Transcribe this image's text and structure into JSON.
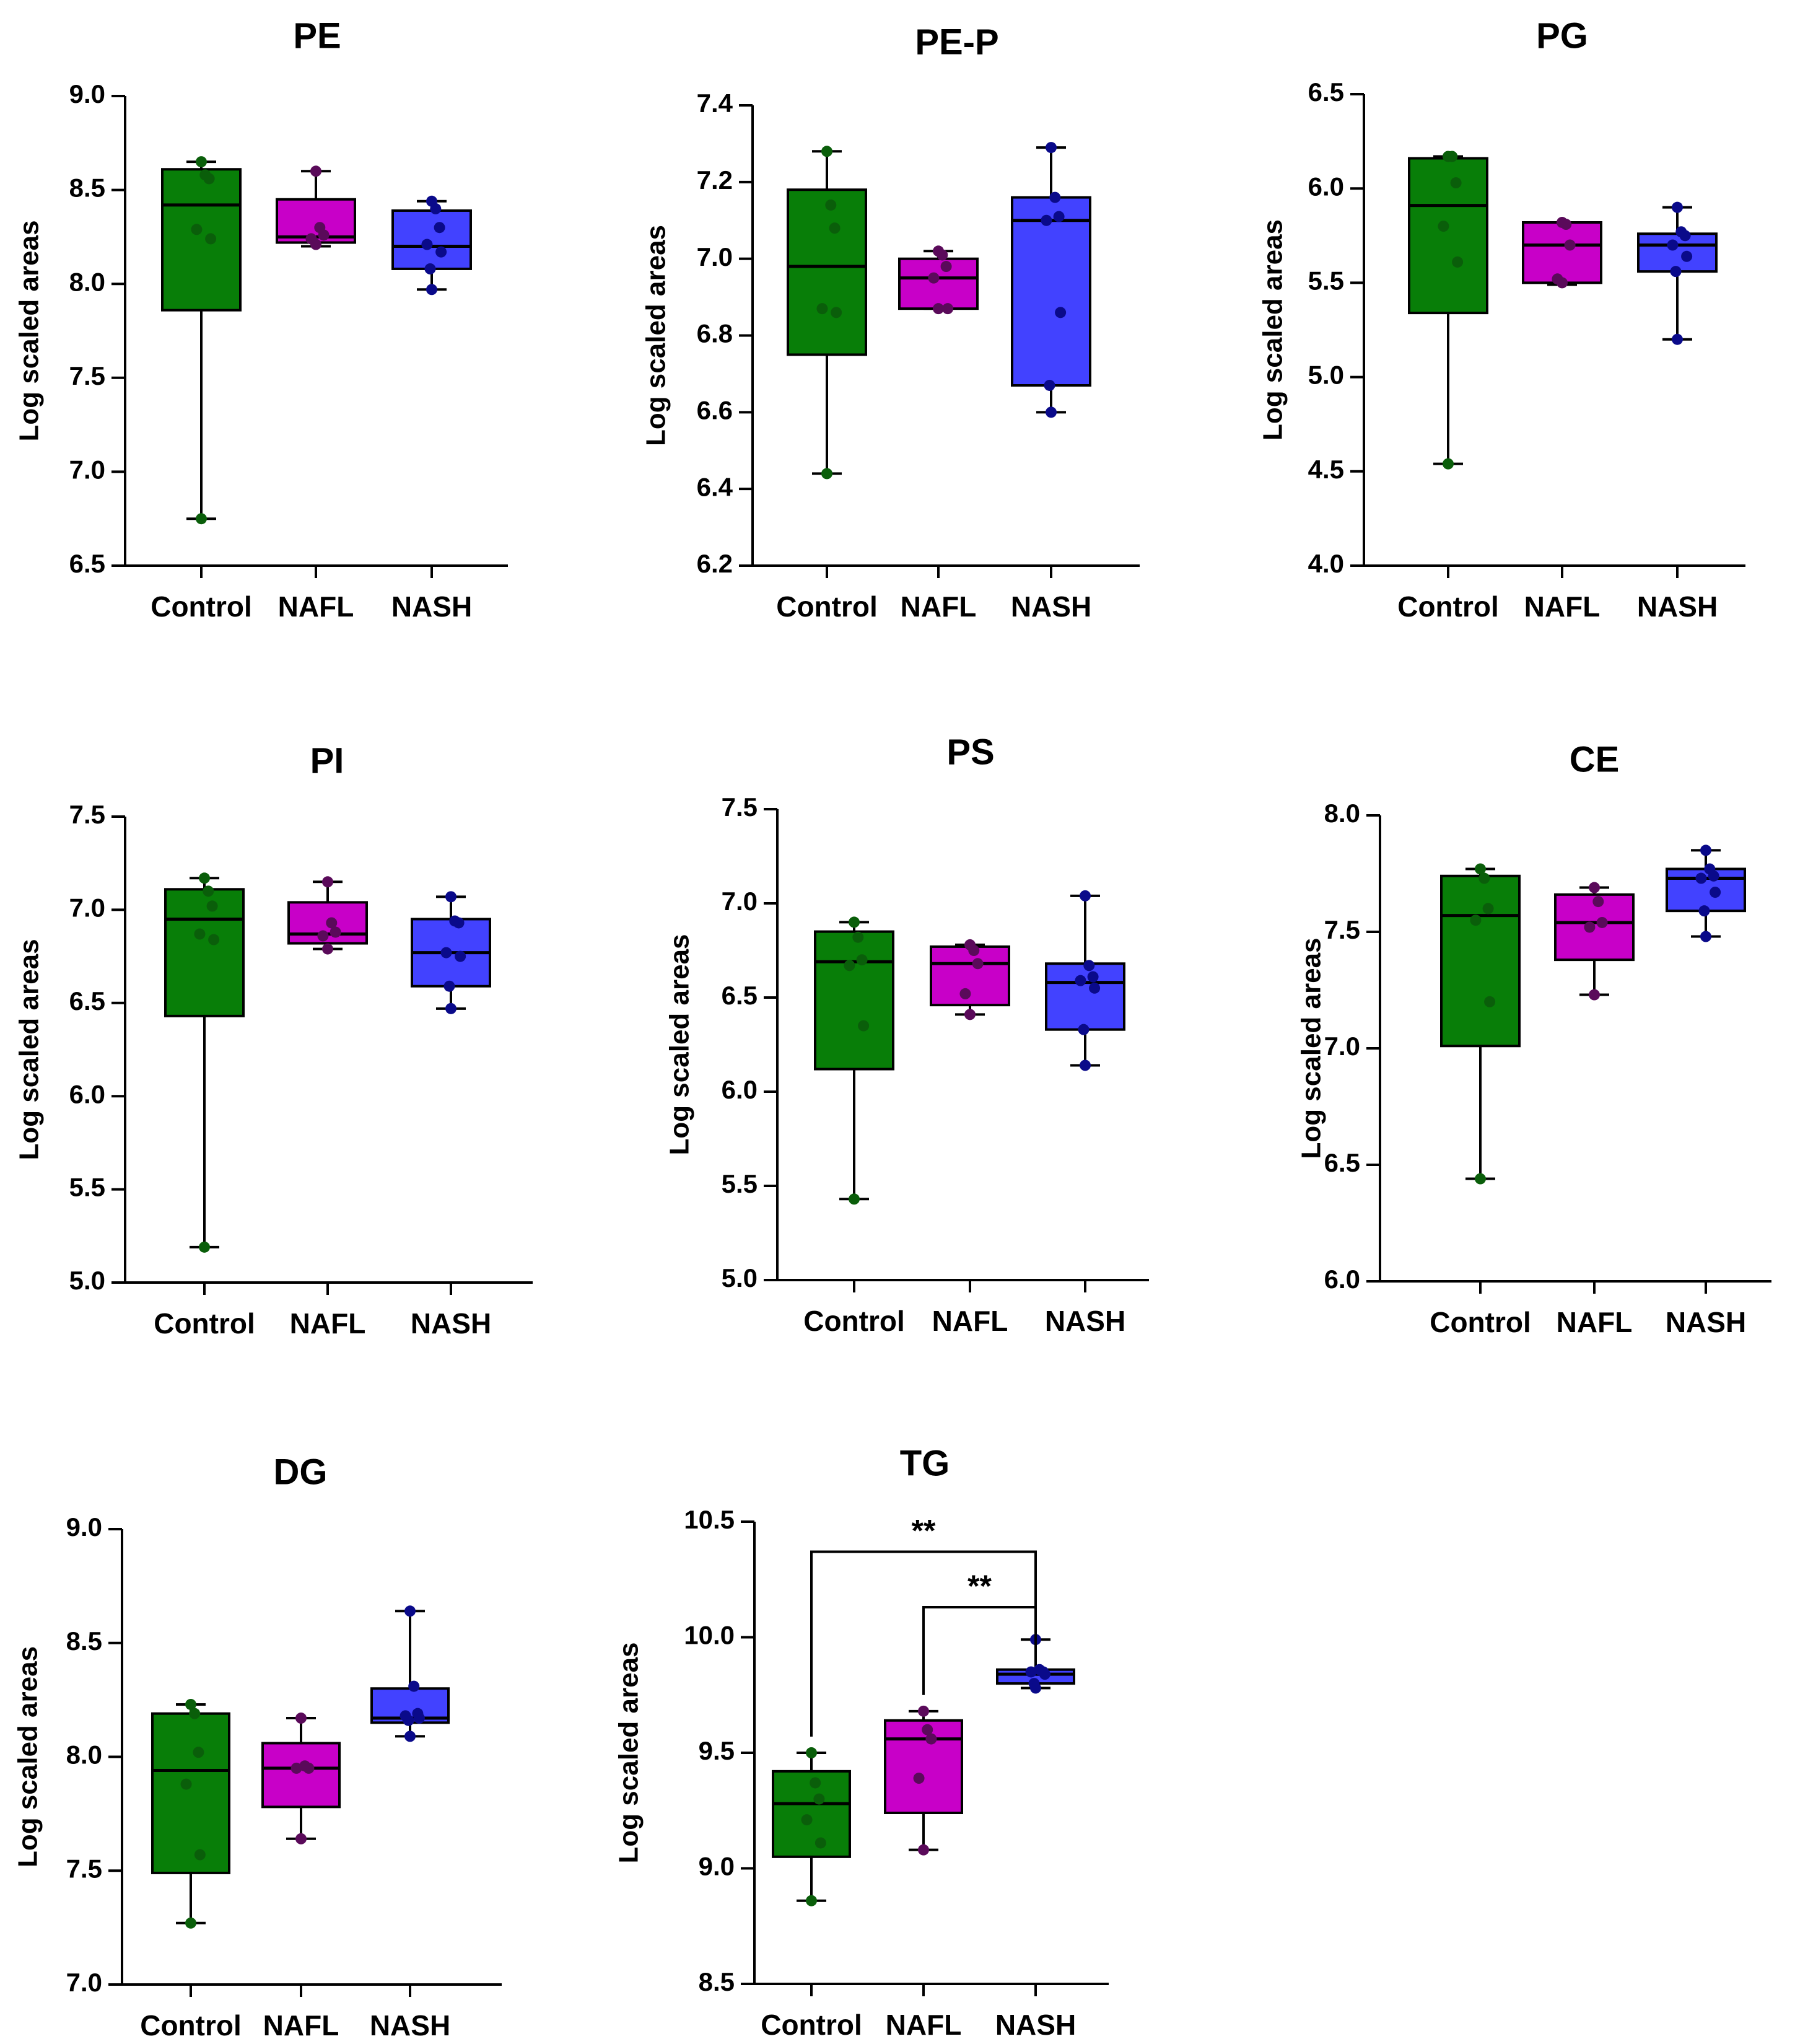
{
  "colors": {
    "Control": "#087e08",
    "NAFL": "#c800c8",
    "NASH": "#4242ff",
    "Control_point": "#0a5e0a",
    "NAFL_point": "#5a0a5a",
    "NASH_point": "#0a0a8a",
    "axis": "#000000"
  },
  "chart_data": [
    {
      "type": "box",
      "title": "PE",
      "xlabel": "",
      "ylabel": "Log scaled areas",
      "ylim": [
        6.5,
        9.0
      ],
      "yticks": [
        "6.5",
        "7.0",
        "7.5",
        "8.0",
        "8.5",
        "9.0"
      ],
      "categories": [
        "Control",
        "NAFL",
        "NASH"
      ],
      "series": [
        {
          "name": "Control",
          "min": 6.75,
          "q1": 7.86,
          "median": 8.42,
          "q3": 8.61,
          "max": 8.65,
          "points": [
            8.65,
            8.58,
            8.56,
            8.29,
            8.24,
            6.75
          ]
        },
        {
          "name": "NAFL",
          "min": 8.2,
          "q1": 8.22,
          "median": 8.25,
          "q3": 8.45,
          "max": 8.6,
          "points": [
            8.6,
            8.3,
            8.26,
            8.24,
            8.21
          ]
        },
        {
          "name": "NASH",
          "min": 7.97,
          "q1": 8.08,
          "median": 8.2,
          "q3": 8.39,
          "max": 8.44,
          "points": [
            8.44,
            8.4,
            8.3,
            8.21,
            8.17,
            8.08,
            7.97
          ]
        }
      ],
      "annotations": []
    },
    {
      "type": "box",
      "title": "PE-P",
      "xlabel": "",
      "ylabel": "Log scaled areas",
      "ylim": [
        6.2,
        7.4
      ],
      "yticks": [
        "6.2",
        "6.4",
        "6.6",
        "6.8",
        "7.0",
        "7.2",
        "7.4"
      ],
      "categories": [
        "Control",
        "NAFL",
        "NASH"
      ],
      "series": [
        {
          "name": "Control",
          "min": 6.44,
          "q1": 6.75,
          "median": 6.98,
          "q3": 7.18,
          "max": 7.28,
          "points": [
            7.28,
            7.14,
            7.08,
            6.87,
            6.86,
            6.44
          ]
        },
        {
          "name": "NAFL",
          "min": 6.87,
          "q1": 6.87,
          "median": 6.95,
          "q3": 7.0,
          "max": 7.02,
          "points": [
            7.02,
            7.01,
            6.98,
            6.95,
            6.87,
            6.87
          ]
        },
        {
          "name": "NASH",
          "min": 6.6,
          "q1": 6.67,
          "median": 7.1,
          "q3": 7.16,
          "max": 7.29,
          "points": [
            7.29,
            7.16,
            7.11,
            7.1,
            6.86,
            6.67,
            6.6
          ]
        }
      ],
      "annotations": []
    },
    {
      "type": "box",
      "title": "PG",
      "xlabel": "",
      "ylabel": "Log scaled areas",
      "ylim": [
        4.0,
        6.5
      ],
      "yticks": [
        "4.0",
        "4.5",
        "5.0",
        "5.5",
        "6.0",
        "6.5"
      ],
      "categories": [
        "Control",
        "NAFL",
        "NASH"
      ],
      "series": [
        {
          "name": "Control",
          "min": 4.54,
          "q1": 5.34,
          "median": 5.91,
          "q3": 6.16,
          "max": 6.17,
          "points": [
            6.17,
            6.17,
            6.03,
            5.8,
            5.61,
            4.54
          ]
        },
        {
          "name": "NAFL",
          "min": 5.49,
          "q1": 5.5,
          "median": 5.7,
          "q3": 5.82,
          "max": 5.82,
          "points": [
            5.82,
            5.81,
            5.7,
            5.52,
            5.5
          ]
        },
        {
          "name": "NASH",
          "min": 5.2,
          "q1": 5.56,
          "median": 5.7,
          "q3": 5.76,
          "max": 5.9,
          "points": [
            5.9,
            5.77,
            5.75,
            5.7,
            5.64,
            5.56,
            5.2
          ]
        }
      ],
      "annotations": []
    },
    {
      "type": "box",
      "title": "PI",
      "xlabel": "",
      "ylabel": "Log scaled areas",
      "ylim": [
        5.0,
        7.5
      ],
      "yticks": [
        "5.0",
        "5.5",
        "6.0",
        "6.5",
        "7.0",
        "7.5"
      ],
      "categories": [
        "Control",
        "NAFL",
        "NASH"
      ],
      "series": [
        {
          "name": "Control",
          "min": 5.19,
          "q1": 6.43,
          "median": 6.95,
          "q3": 7.11,
          "max": 7.17,
          "points": [
            7.17,
            7.1,
            7.02,
            6.87,
            6.84,
            5.19
          ]
        },
        {
          "name": "NAFL",
          "min": 6.79,
          "q1": 6.82,
          "median": 6.87,
          "q3": 7.04,
          "max": 7.15,
          "points": [
            7.15,
            6.93,
            6.88,
            6.86,
            6.79
          ]
        },
        {
          "name": "NASH",
          "min": 6.47,
          "q1": 6.59,
          "median": 6.77,
          "q3": 6.95,
          "max": 7.07,
          "points": [
            7.07,
            6.94,
            6.93,
            6.77,
            6.75,
            6.59,
            6.47
          ]
        }
      ],
      "annotations": []
    },
    {
      "type": "box",
      "title": "PS",
      "xlabel": "",
      "ylabel": "Log scaled areas",
      "ylim": [
        5.0,
        7.5
      ],
      "yticks": [
        "5.0",
        "5.5",
        "6.0",
        "6.5",
        "7.0",
        "7.5"
      ],
      "categories": [
        "Control",
        "NAFL",
        "NASH"
      ],
      "series": [
        {
          "name": "Control",
          "min": 5.43,
          "q1": 6.12,
          "median": 6.69,
          "q3": 6.85,
          "max": 6.9,
          "points": [
            6.9,
            6.82,
            6.7,
            6.67,
            6.35,
            5.43
          ]
        },
        {
          "name": "NAFL",
          "min": 6.41,
          "q1": 6.46,
          "median": 6.68,
          "q3": 6.77,
          "max": 6.78,
          "points": [
            6.78,
            6.75,
            6.68,
            6.52,
            6.41
          ]
        },
        {
          "name": "NASH",
          "min": 6.14,
          "q1": 6.33,
          "median": 6.58,
          "q3": 6.68,
          "max": 7.04,
          "points": [
            7.04,
            6.67,
            6.61,
            6.59,
            6.55,
            6.33,
            6.14
          ]
        }
      ],
      "annotations": []
    },
    {
      "type": "box",
      "title": "CE",
      "xlabel": "",
      "ylabel": "Log scaled areas",
      "ylim": [
        6.0,
        8.0
      ],
      "yticks": [
        "6.0",
        "6.5",
        "7.0",
        "7.5",
        "8.0"
      ],
      "categories": [
        "Control",
        "NAFL",
        "NASH"
      ],
      "series": [
        {
          "name": "Control",
          "min": 6.44,
          "q1": 7.01,
          "median": 7.57,
          "q3": 7.74,
          "max": 7.77,
          "points": [
            7.77,
            7.73,
            7.6,
            7.55,
            7.2,
            6.44
          ]
        },
        {
          "name": "NAFL",
          "min": 7.23,
          "q1": 7.38,
          "median": 7.54,
          "q3": 7.66,
          "max": 7.69,
          "points": [
            7.69,
            7.63,
            7.54,
            7.52,
            7.23
          ]
        },
        {
          "name": "NASH",
          "min": 7.48,
          "q1": 7.59,
          "median": 7.73,
          "q3": 7.77,
          "max": 7.85,
          "points": [
            7.85,
            7.77,
            7.74,
            7.73,
            7.67,
            7.59,
            7.48
          ]
        }
      ],
      "annotations": []
    },
    {
      "type": "box",
      "title": "DG",
      "xlabel": "",
      "ylabel": "Log scaled areas",
      "ylim": [
        7.0,
        9.0
      ],
      "yticks": [
        "7.0",
        "7.5",
        "8.0",
        "8.5",
        "9.0"
      ],
      "categories": [
        "Control",
        "NAFL",
        "NASH"
      ],
      "series": [
        {
          "name": "Control",
          "min": 7.27,
          "q1": 7.49,
          "median": 7.94,
          "q3": 8.19,
          "max": 8.23,
          "points": [
            8.23,
            8.19,
            8.02,
            7.88,
            7.57,
            7.27
          ]
        },
        {
          "name": "NAFL",
          "min": 7.64,
          "q1": 7.78,
          "median": 7.95,
          "q3": 8.06,
          "max": 8.17,
          "points": [
            8.17,
            7.96,
            7.95,
            7.95,
            7.64
          ]
        },
        {
          "name": "NASH",
          "min": 8.09,
          "q1": 8.15,
          "median": 8.17,
          "q3": 8.3,
          "max": 8.64,
          "points": [
            8.64,
            8.31,
            8.19,
            8.18,
            8.17,
            8.16,
            8.09
          ]
        }
      ],
      "annotations": []
    },
    {
      "type": "box",
      "title": "TG",
      "xlabel": "",
      "ylabel": "Log scaled areas",
      "ylim": [
        8.5,
        10.5
      ],
      "yticks": [
        "8.5",
        "9.0",
        "9.5",
        "10.0",
        "10.5"
      ],
      "categories": [
        "Control",
        "NAFL",
        "NASH"
      ],
      "series": [
        {
          "name": "Control",
          "min": 8.86,
          "q1": 9.05,
          "median": 9.28,
          "q3": 9.42,
          "max": 9.5,
          "points": [
            9.5,
            9.37,
            9.3,
            9.21,
            9.11,
            8.86
          ]
        },
        {
          "name": "NAFL",
          "min": 9.08,
          "q1": 9.24,
          "median": 9.56,
          "q3": 9.64,
          "max": 9.68,
          "points": [
            9.68,
            9.6,
            9.56,
            9.39,
            9.08
          ]
        },
        {
          "name": "NASH",
          "min": 9.78,
          "q1": 9.8,
          "median": 9.84,
          "q3": 9.86,
          "max": 9.99,
          "points": [
            9.99,
            9.86,
            9.85,
            9.85,
            9.84,
            9.8,
            9.78
          ]
        }
      ],
      "annotations": [
        {
          "from": 0,
          "to": 2,
          "label": "**"
        },
        {
          "from": 1,
          "to": 2,
          "label": "**"
        }
      ]
    }
  ]
}
